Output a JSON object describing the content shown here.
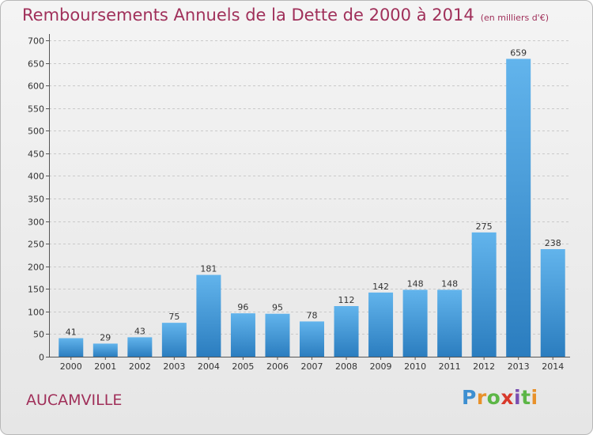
{
  "header": {
    "title": "Remboursements Annuels de la Dette de 2000 à 2014",
    "unit": "(en milliers d'€)"
  },
  "footer": {
    "town": "AUCAMVILLE",
    "logo": "Proxiti"
  },
  "colors": {
    "title": "#a0305a",
    "bar_top": "#62b4ec",
    "bar_bottom": "#2b7dbf"
  },
  "chart_data": {
    "type": "bar",
    "title": "Remboursements Annuels de la Dette de 2000 à 2014",
    "subtitle": "(en milliers d'€)",
    "xlabel": "",
    "ylabel": "",
    "categories": [
      "2000",
      "2001",
      "2002",
      "2003",
      "2004",
      "2005",
      "2006",
      "2007",
      "2008",
      "2009",
      "2010",
      "2011",
      "2012",
      "2013",
      "2014"
    ],
    "values": [
      41,
      29,
      43,
      75,
      181,
      96,
      95,
      78,
      112,
      142,
      148,
      148,
      275,
      659,
      238
    ],
    "ylim": [
      0,
      700
    ],
    "yticks": [
      0,
      50,
      100,
      150,
      200,
      250,
      300,
      350,
      400,
      450,
      500,
      550,
      600,
      650,
      700
    ],
    "grid": true,
    "legend": "none"
  }
}
